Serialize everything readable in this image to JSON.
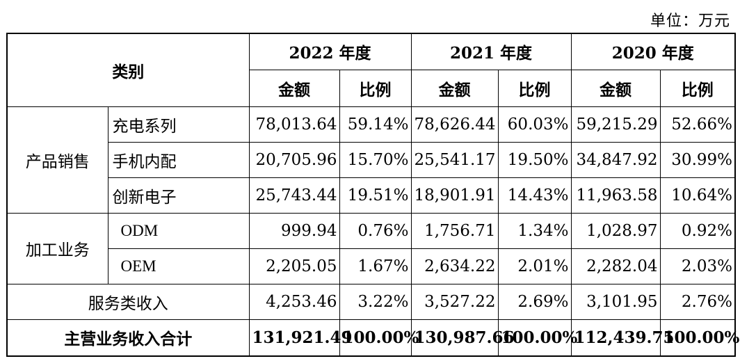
{
  "unit_label": "单位：万元",
  "header": {
    "category": "类别",
    "years": [
      "2022 年度",
      "2021 年度",
      "2020 年度"
    ],
    "amount": "金额",
    "ratio": "比例"
  },
  "groups": {
    "product_sales": "产品销售",
    "processing": "加工业务"
  },
  "rows": [
    {
      "label": "充电系列",
      "values": [
        "78,013.64",
        "59.14%",
        "78,626.44",
        "60.03%",
        "59,215.29",
        "52.66%"
      ]
    },
    {
      "label": "手机内配",
      "values": [
        "20,705.96",
        "15.70%",
        "25,541.17",
        "19.50%",
        "34,847.92",
        "30.99%"
      ]
    },
    {
      "label": "创新电子",
      "values": [
        "25,743.44",
        "19.51%",
        "18,901.91",
        "14.43%",
        "11,963.58",
        "10.64%"
      ]
    },
    {
      "label": "ODM",
      "values": [
        "999.94",
        "0.76%",
        "1,756.71",
        "1.34%",
        "1,028.97",
        "0.92%"
      ]
    },
    {
      "label": "OEM",
      "values": [
        "2,205.05",
        "1.67%",
        "2,634.22",
        "2.01%",
        "2,282.04",
        "2.03%"
      ]
    },
    {
      "label": "服务类收入",
      "values": [
        "4,253.46",
        "3.22%",
        "3,527.22",
        "2.69%",
        "3,101.95",
        "2.76%"
      ]
    }
  ],
  "total": {
    "label": "主营业务收入合计",
    "values": [
      "131,921.49",
      "100.00%",
      "130,987.66",
      "100.00%",
      "112,439.75",
      "100.00%"
    ]
  }
}
